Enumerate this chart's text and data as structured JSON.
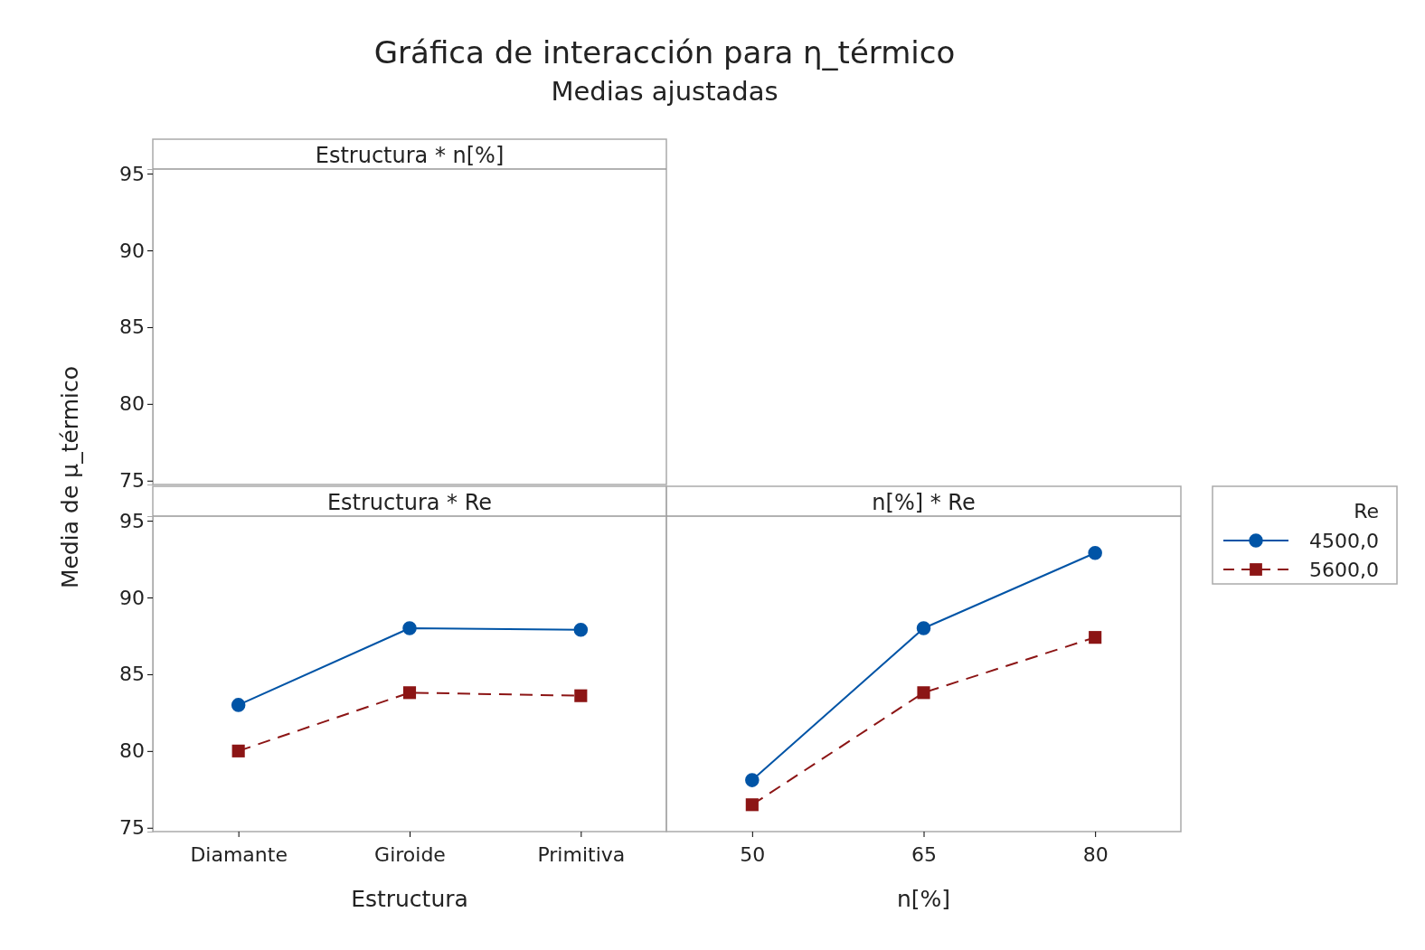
{
  "chart_data": [
    {
      "type": "line",
      "title": "Gráfica de interacción para η_térmico",
      "subtitle": "Medias ajustadas",
      "annotations": [
        "Estructura * n[%]"
      ],
      "ylabel": "Media de μ_térmico",
      "categories": [
        null,
        null,
        null
      ],
      "values": [
        null,
        null,
        null
      ],
      "ylim": [
        74.75,
        95.3
      ],
      "yticks": [
        75,
        80,
        85,
        90,
        95
      ],
      "tick_labels": "y"
    },
    {
      "type": "line",
      "annotations": [
        "Estructura * Re"
      ],
      "xlabel": "Estructura",
      "categories": [
        "Diamante",
        "Giroide",
        "Primitiva"
      ],
      "ylim": [
        74.75,
        95.3
      ],
      "yticks": [
        75,
        80,
        85,
        90,
        95
      ],
      "series": [
        {
          "color": "#0054a6",
          "marker": "circle",
          "line_style": "solid",
          "values": [
            83.0,
            88.0,
            87.9
          ]
        },
        {
          "color": "#8c1515",
          "marker": "square",
          "line_style": "dashed",
          "values": [
            80.0,
            83.8,
            83.6
          ]
        }
      ]
    },
    {
      "type": "line",
      "annotations": [
        "n[%] * Re"
      ],
      "xlabel": "n[%]",
      "categories": [
        "50",
        "65",
        "80"
      ],
      "ylim": [
        74.75,
        95.3
      ],
      "tick_labels": "x",
      "legend": "right",
      "legend_title": "Re",
      "series": [
        {
          "name": "4500,0",
          "color": "#0054a6",
          "marker": "circle",
          "line_style": "solid",
          "values": [
            78.1,
            88.0,
            92.9
          ]
        },
        {
          "name": "5600,0",
          "color": "#8c1515",
          "marker": "square",
          "line_style": "dashed",
          "values": [
            76.5,
            83.8,
            87.4
          ]
        }
      ]
    }
  ]
}
